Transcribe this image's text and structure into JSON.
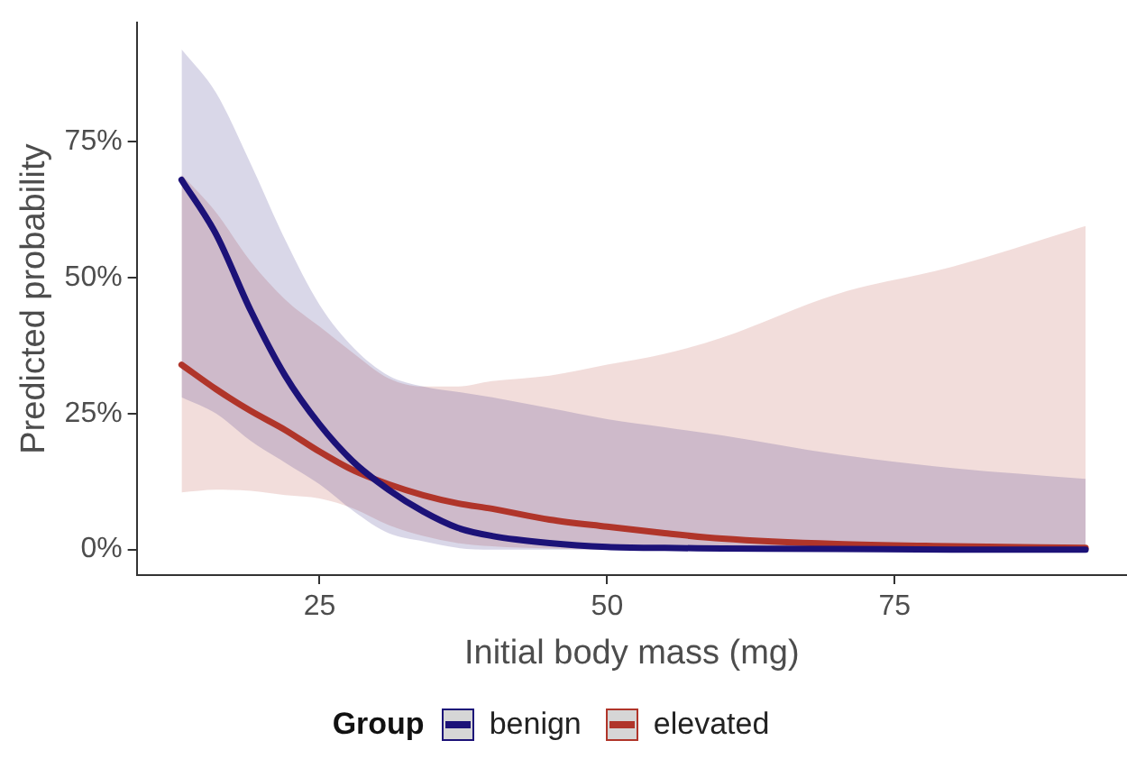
{
  "chart_data": {
    "type": "line",
    "xlabel": "Initial body mass (mg)",
    "ylabel": "Predicted probability",
    "legend_title": "Group",
    "legend": "bottom",
    "grid": false,
    "marker": "none",
    "line_style": "solid",
    "x": [
      13,
      16,
      19,
      22,
      25,
      28,
      31,
      34,
      37,
      40,
      45,
      50,
      55,
      60,
      70,
      80,
      91.6
    ],
    "xlim": [
      9.1,
      95.2
    ],
    "xticks": [
      25,
      50,
      75
    ],
    "ylim": [
      -4.7,
      96.9
    ],
    "yticks": [
      {
        "value": 0,
        "label": "0%"
      },
      {
        "value": 25,
        "label": "25%"
      },
      {
        "value": 50,
        "label": "50%"
      },
      {
        "value": 75,
        "label": "75%"
      }
    ],
    "series": [
      {
        "name": "benign",
        "color": "#1c1278",
        "values": [
          68,
          58,
          44,
          32,
          23,
          16,
          11,
          7,
          4,
          2.5,
          1.2,
          0.5,
          0.3,
          0.2,
          0.1,
          0,
          0
        ],
        "upper": [
          92,
          84,
          71,
          57,
          45,
          37,
          32,
          30,
          29,
          28,
          26,
          24,
          22.5,
          21,
          17.5,
          15,
          13
        ],
        "lower": [
          28,
          25,
          20,
          16,
          12,
          7,
          3,
          1.5,
          0.3,
          0,
          0,
          0,
          0,
          0,
          0,
          0,
          0
        ]
      },
      {
        "name": "elevated",
        "color": "#b0352a",
        "values": [
          34,
          29.5,
          25.5,
          22,
          18,
          14.5,
          12,
          10,
          8.5,
          7.5,
          5.5,
          4.2,
          3,
          2,
          1,
          0.6,
          0.3
        ],
        "upper": [
          69,
          62,
          53,
          46,
          41,
          36,
          31.5,
          30,
          30,
          31,
          32,
          34,
          36,
          39,
          47,
          52,
          59.5
        ],
        "lower": [
          10.5,
          11,
          10.8,
          10,
          9.4,
          7.5,
          4.5,
          2.5,
          1.2,
          0.6,
          0.2,
          0,
          0,
          0,
          0,
          0,
          0
        ]
      }
    ]
  }
}
